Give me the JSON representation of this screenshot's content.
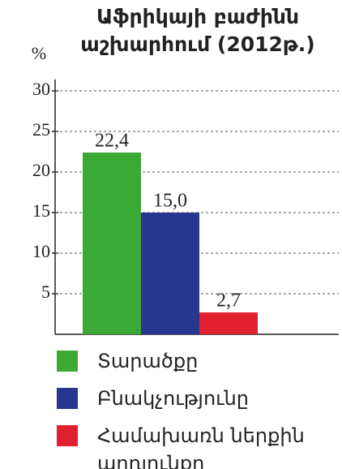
{
  "chart_data": {
    "type": "bar",
    "title": "Աֆրիկայի բաժինն աշխարհում (2012թ.)",
    "y_label": "%",
    "categories": [
      "Տարածքը",
      "Բնակչությունը",
      "Համախառն ներքին արդյունքը"
    ],
    "values": [
      22.4,
      15.0,
      2.7
    ],
    "value_labels": [
      "22,4",
      "15,0",
      "2,7"
    ],
    "colors": [
      "#3aaa35",
      "#27368e",
      "#e0202f"
    ],
    "ylim": [
      0,
      30
    ],
    "yticks": [
      5,
      10,
      15,
      20,
      25,
      30
    ],
    "grid": true,
    "legend": "bottom"
  }
}
